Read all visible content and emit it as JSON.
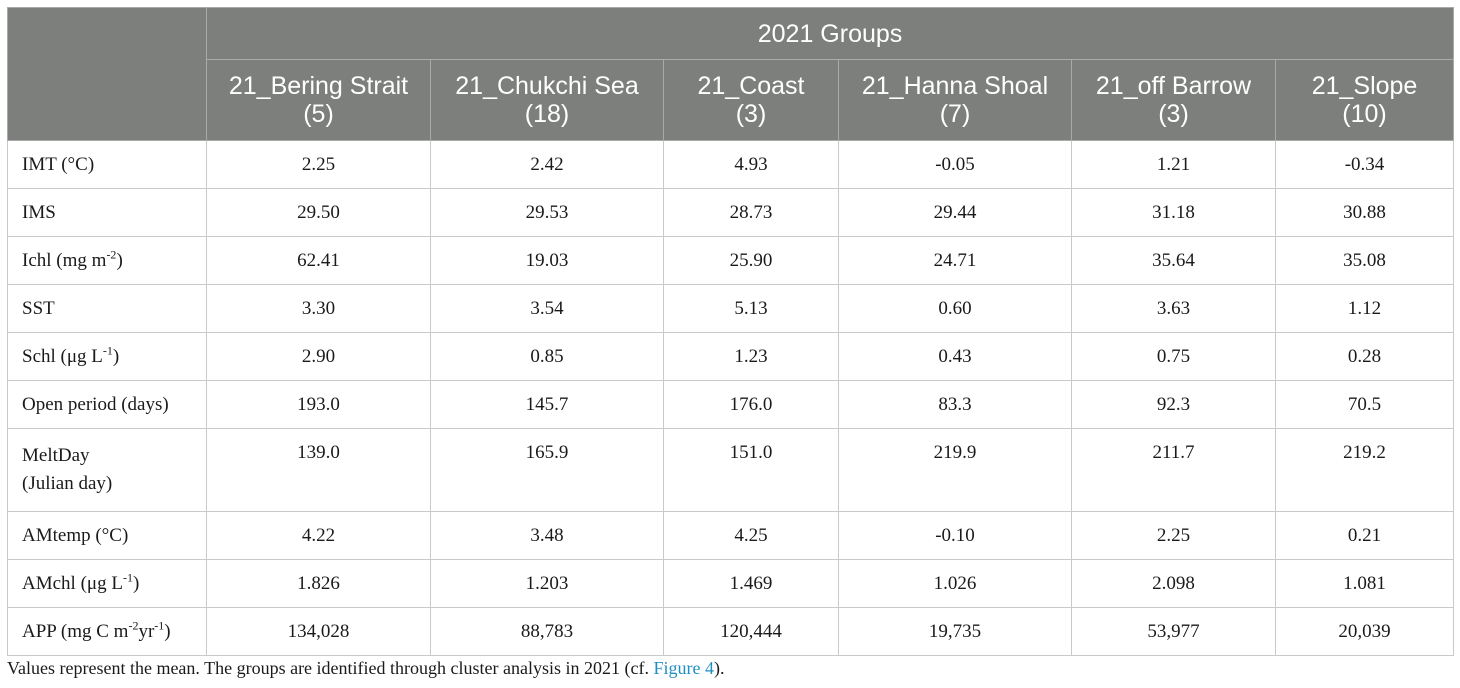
{
  "table": {
    "group_header": "2021 Groups",
    "columns": [
      {
        "name": "21_Bering Strait",
        "n": "(5)"
      },
      {
        "name": "21_Chukchi Sea",
        "n": "(18)"
      },
      {
        "name": "21_Coast",
        "n": "(3)"
      },
      {
        "name": "21_Hanna Shoal",
        "n": "(7)"
      },
      {
        "name": "21_off Barrow",
        "n": "(3)"
      },
      {
        "name": "21_Slope",
        "n": "(10)"
      }
    ],
    "rows": [
      {
        "label": "IMT (°C)",
        "values": [
          "2.25",
          "2.42",
          "4.93",
          "-0.05",
          "1.21",
          "-0.34"
        ]
      },
      {
        "label": "IMS",
        "values": [
          "29.50",
          "29.53",
          "28.73",
          "29.44",
          "31.18",
          "30.88"
        ]
      },
      {
        "label_pre": "Ichl (mg m",
        "label_sup": "-2",
        "label_post": ")",
        "values": [
          "62.41",
          "19.03",
          "25.90",
          "24.71",
          "35.64",
          "35.08"
        ]
      },
      {
        "label": "SST",
        "values": [
          "3.30",
          "3.54",
          "5.13",
          "0.60",
          "3.63",
          "1.12"
        ]
      },
      {
        "label_pre": "Schl (μg L",
        "label_sup": "-1",
        "label_post": ")",
        "values": [
          "2.90",
          "0.85",
          "1.23",
          "0.43",
          "0.75",
          "0.28"
        ]
      },
      {
        "label": "Open period (days)",
        "values": [
          "193.0",
          "145.7",
          "176.0",
          "83.3",
          "92.3",
          "70.5"
        ]
      },
      {
        "label_line1": "MeltDay",
        "label_line2": "(Julian day)",
        "values": [
          "139.0",
          "165.9",
          "151.0",
          "219.9",
          "211.7",
          "219.2"
        ]
      },
      {
        "label": "AMtemp (°C)",
        "values": [
          "4.22",
          "3.48",
          "4.25",
          "-0.10",
          "2.25",
          "0.21"
        ]
      },
      {
        "label_pre": "AMchl (μg L",
        "label_sup": "-1",
        "label_post": ")",
        "values": [
          "1.826",
          "1.203",
          "1.469",
          "1.026",
          "2.098",
          "1.081"
        ]
      },
      {
        "label_pre": "APP (mg C m",
        "label_sup": "-2",
        "label_mid": "yr",
        "label_sup2": "-1",
        "label_post": ")",
        "values": [
          "134,028",
          "88,783",
          "120,444",
          "19,735",
          "53,977",
          "20,039"
        ]
      }
    ]
  },
  "footnote": {
    "text_before": "Values represent the mean. The groups are identified through cluster analysis in 2021 (cf. ",
    "link": "Figure 4",
    "text_after": ")."
  }
}
